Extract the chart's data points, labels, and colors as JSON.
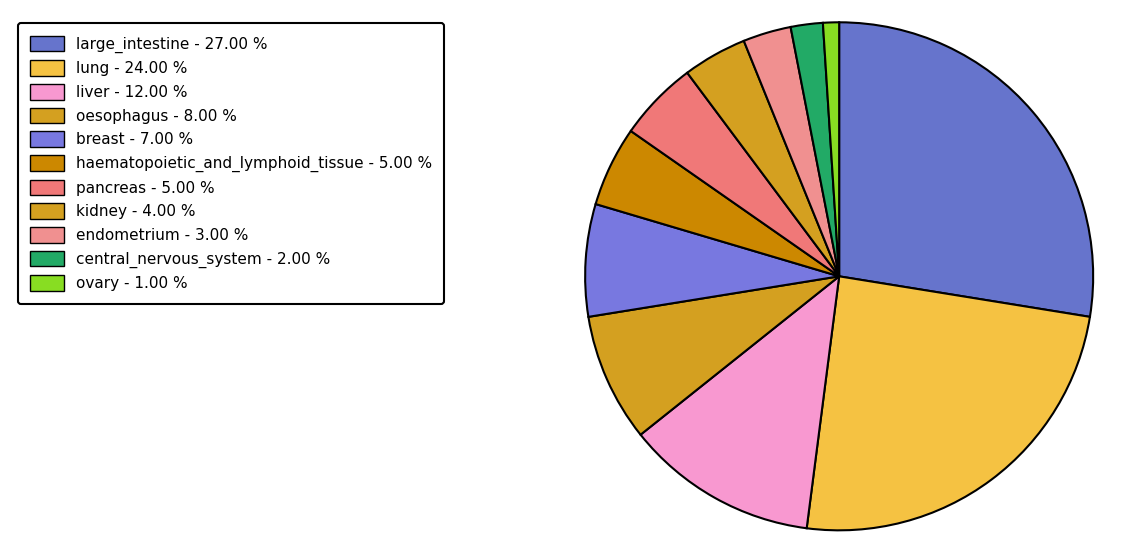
{
  "labels": [
    "large_intestine - 27.00 %",
    "lung - 24.00 %",
    "liver - 12.00 %",
    "oesophagus - 8.00 %",
    "breast - 7.00 %",
    "haematopoietic_and_lymphoid_tissue - 5.00 %",
    "pancreas - 5.00 %",
    "kidney - 4.00 %",
    "endometrium - 3.00 %",
    "central_nervous_system - 2.00 %",
    "ovary - 1.00 %"
  ],
  "values": [
    27,
    24,
    12,
    8,
    7,
    5,
    5,
    4,
    3,
    2,
    1
  ],
  "colors": [
    "#6674cc",
    "#f5c242",
    "#f898d0",
    "#d4a020",
    "#7878e0",
    "#cc8800",
    "#f07878",
    "#d4a020",
    "#f09090",
    "#22aa66",
    "#88dd22"
  ],
  "figsize": [
    11.34,
    5.38
  ],
  "dpi": 100,
  "legend_fontsize": 11
}
